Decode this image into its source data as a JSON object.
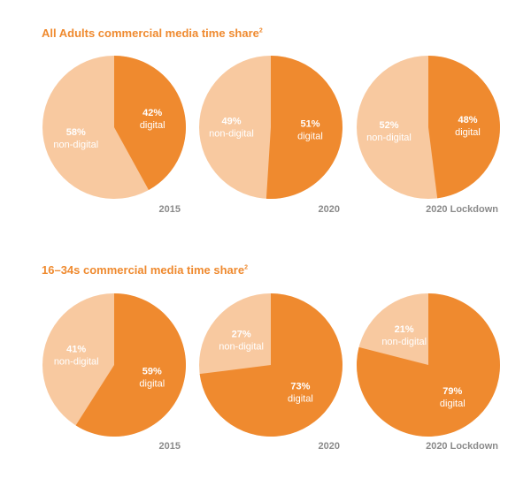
{
  "colors": {
    "digital": "#ef8a2f",
    "non_digital": "#f8c9a0",
    "title": "#ef8a2f",
    "year": "#8a8a8a"
  },
  "chart_data": [
    {
      "type": "pie",
      "title": "All Adults commercial media time share",
      "title_superscript": "2",
      "charts": [
        {
          "label": "2015",
          "slices": [
            {
              "name": "digital",
              "value": 42
            },
            {
              "name": "non-digital",
              "value": 58
            }
          ]
        },
        {
          "label": "2020",
          "slices": [
            {
              "name": "digital",
              "value": 51
            },
            {
              "name": "non-digital",
              "value": 49
            }
          ]
        },
        {
          "label": "2020 Lockdown",
          "slices": [
            {
              "name": "digital",
              "value": 48
            },
            {
              "name": "non-digital",
              "value": 52
            }
          ]
        }
      ]
    },
    {
      "type": "pie",
      "title": "16–34s commercial media time share",
      "title_superscript": "2",
      "charts": [
        {
          "label": "2015",
          "slices": [
            {
              "name": "digital",
              "value": 59
            },
            {
              "name": "non-digital",
              "value": 41
            }
          ]
        },
        {
          "label": "2020",
          "slices": [
            {
              "name": "digital",
              "value": 73
            },
            {
              "name": "non-digital",
              "value": 27
            }
          ]
        },
        {
          "label": "2020 Lockdown",
          "slices": [
            {
              "name": "digital",
              "value": 79
            },
            {
              "name": "non-digital",
              "value": 21
            }
          ]
        }
      ]
    }
  ]
}
